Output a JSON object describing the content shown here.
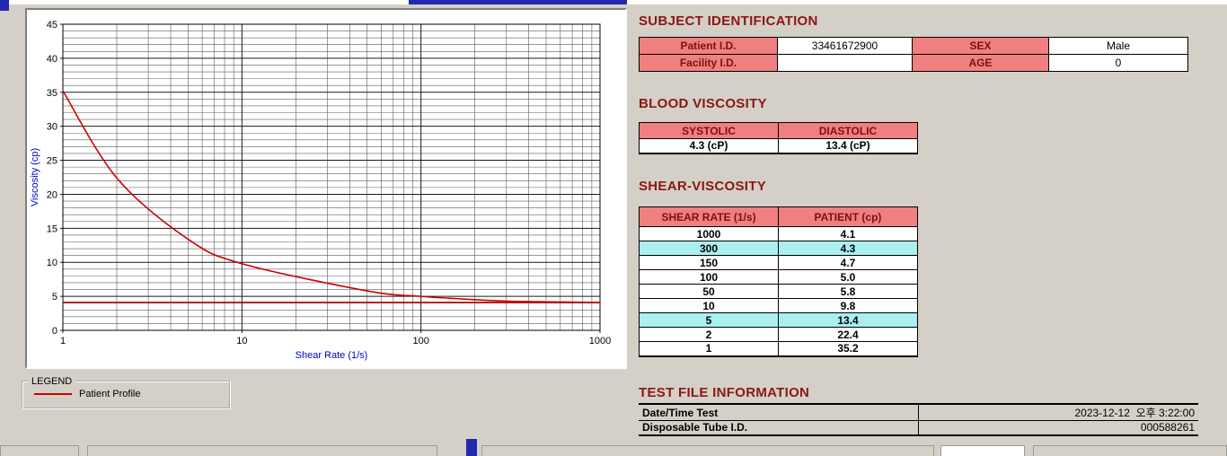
{
  "window": {
    "bg": "#d4d0c8"
  },
  "colors": {
    "title_text": "#8b1616",
    "pink": "#f08080",
    "cyan_highlight": "#aaf0f0",
    "line_red": "#cc0000",
    "axis_label_blue": "#0000cc",
    "fragment_blue": "#2228b0"
  },
  "chart": {
    "legend_title": "LEGEND",
    "legend_series": "Patient Profile"
  },
  "chart_data": {
    "type": "line",
    "title": "",
    "xlabel": "Shear Rate (1/s)",
    "ylabel": "Viscosity (cp)",
    "x_scale": "log",
    "xlim": [
      1,
      1000
    ],
    "ylim": [
      0,
      45
    ],
    "x_ticks": [
      1,
      10,
      100,
      1000
    ],
    "y_ticks": [
      0,
      5,
      10,
      15,
      20,
      25,
      30,
      35,
      40,
      45
    ],
    "grid": "dense-log-minor",
    "x": [
      1,
      2,
      5,
      10,
      50,
      100,
      150,
      300,
      1000
    ],
    "series": [
      {
        "name": "Patient Profile",
        "values": [
          35.2,
          22.4,
          13.4,
          9.8,
          5.8,
          5.0,
          4.7,
          4.3,
          4.1
        ]
      }
    ],
    "reference_line_y": 4.1,
    "line_color": "#cc0000"
  },
  "subject": {
    "title": "SUBJECT IDENTIFICATION",
    "patient_id_label": "Patient I.D.",
    "patient_id": "33461672900",
    "sex_label": "SEX",
    "sex": "Male",
    "facility_label": "Facility I.D.",
    "facility_id": "",
    "age_label": "AGE",
    "age": "0"
  },
  "blood_viscosity": {
    "title": "BLOOD VISCOSITY",
    "systolic_label": "SYSTOLIC",
    "diastolic_label": "DIASTOLIC",
    "systolic_value": "4.3 (cP)",
    "diastolic_value": "13.4 (cP)"
  },
  "shear_viscosity": {
    "title": "SHEAR-VISCOSITY",
    "col1": "SHEAR RATE (1/s)",
    "col2": "PATIENT (cp)",
    "rows": [
      {
        "rate": "1000",
        "value": "4.1",
        "highlight": false
      },
      {
        "rate": "300",
        "value": "4.3",
        "highlight": true
      },
      {
        "rate": "150",
        "value": "4.7",
        "highlight": false
      },
      {
        "rate": "100",
        "value": "5.0",
        "highlight": false
      },
      {
        "rate": "50",
        "value": "5.8",
        "highlight": false
      },
      {
        "rate": "10",
        "value": "9.8",
        "highlight": false
      },
      {
        "rate": "5",
        "value": "13.4",
        "highlight": true
      },
      {
        "rate": "2",
        "value": "22.4",
        "highlight": false
      },
      {
        "rate": "1",
        "value": "35.2",
        "highlight": false
      }
    ]
  },
  "test_file": {
    "title": "TEST FILE INFORMATION",
    "rows": [
      {
        "label": "Date/Time Test",
        "value": "2023-12-12  오후 3:22:00"
      },
      {
        "label": "Disposable Tube I.D.",
        "value": "000588261"
      }
    ]
  }
}
